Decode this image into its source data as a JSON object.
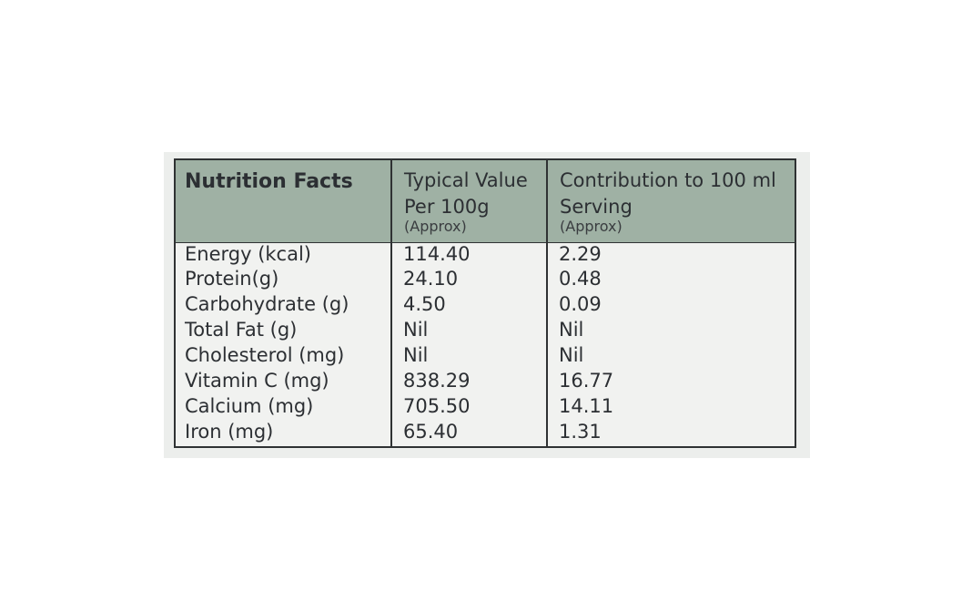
{
  "table": {
    "headers": {
      "nutrient": "Nutrition Facts",
      "typical_line1": "Typical Value",
      "typical_line2": "Per 100g",
      "typical_note": "(Approx)",
      "contribution_line1": "Contribution to 100 ml",
      "contribution_line2": "Serving",
      "contribution_note": "(Approx)"
    },
    "rows": [
      {
        "nutrient": "Energy (kcal)",
        "typical": "114.40",
        "contribution": "2.29"
      },
      {
        "nutrient": "Protein(g)",
        "typical": "24.10",
        "contribution": "0.48"
      },
      {
        "nutrient": "Carbohydrate (g)",
        "typical": "4.50",
        "contribution": "0.09"
      },
      {
        "nutrient": "Total Fat (g)",
        "typical": "Nil",
        "contribution": "Nil"
      },
      {
        "nutrient": "Cholesterol (mg)",
        "typical": "Nil",
        "contribution": "Nil"
      },
      {
        "nutrient": "Vitamin C (mg)",
        "typical": "838.29",
        "contribution": "16.77"
      },
      {
        "nutrient": "Calcium (mg)",
        "typical": "705.50",
        "contribution": "14.11"
      },
      {
        "nutrient": "Iron (mg)",
        "typical": "65.40",
        "contribution": "1.31"
      }
    ]
  },
  "colors": {
    "header_background": "#9fb1a4",
    "body_background": "#f1f2f0",
    "text": "#2c2f33",
    "border": "#2f3233"
  }
}
